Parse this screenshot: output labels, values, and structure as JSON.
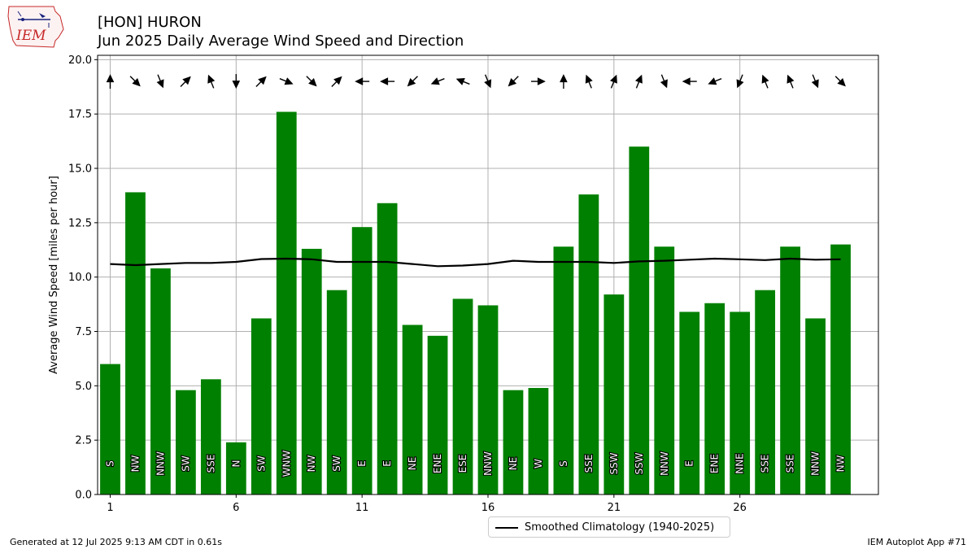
{
  "logo_text": "IEM",
  "title_line1": "[HON] HURON",
  "title_line2": "Jun 2025 Daily Average Wind Speed and Direction",
  "footer_left": "Generated at 12 Jul 2025 9:13 AM CDT in 0.61s",
  "footer_right": "IEM Autoplot App #71",
  "legend_label": "Smoothed Climatology (1940-2025)",
  "colors": {
    "bar": "#008000",
    "line": "#000000",
    "grid": "#b0b0b0",
    "logo_red": "#c62828",
    "logo_blue": "#1a237e"
  },
  "chart_data": {
    "type": "bar",
    "ylabel": "Average Wind Speed [miles per hour]",
    "xlabel": "",
    "ylim": [
      0,
      20.2
    ],
    "xlim": [
      0.5,
      31.5
    ],
    "yticks": [
      0.0,
      2.5,
      5.0,
      7.5,
      10.0,
      12.5,
      15.0,
      17.5,
      20.0
    ],
    "ytick_labels": [
      "0.0",
      "2.5",
      "5.0",
      "7.5",
      "10.0",
      "12.5",
      "15.0",
      "17.5",
      "20.0"
    ],
    "xticks": [
      1,
      6,
      11,
      16,
      21,
      26
    ],
    "xtick_labels": [
      "1",
      "6",
      "11",
      "16",
      "21",
      "26"
    ],
    "grid": true,
    "legend_position": "below",
    "days": [
      1,
      2,
      3,
      4,
      5,
      6,
      7,
      8,
      9,
      10,
      11,
      12,
      13,
      14,
      15,
      16,
      17,
      18,
      19,
      20,
      21,
      22,
      23,
      24,
      25,
      26,
      27,
      28,
      29,
      30
    ],
    "speed": [
      6.0,
      13.9,
      10.4,
      4.8,
      5.3,
      2.4,
      8.1,
      17.6,
      11.3,
      9.4,
      12.3,
      13.4,
      7.8,
      7.3,
      9.0,
      8.7,
      4.8,
      4.9,
      11.4,
      13.8,
      9.2,
      16.0,
      11.4,
      8.4,
      8.8,
      8.4,
      9.4,
      11.4,
      8.1,
      11.5
    ],
    "direction_labels": [
      "S",
      "NW",
      "NNW",
      "SW",
      "SSE",
      "N",
      "SW",
      "WNW",
      "NW",
      "SW",
      "E",
      "E",
      "NE",
      "ENE",
      "ESE",
      "NNW",
      "NE",
      "W",
      "S",
      "SSE",
      "SSW",
      "SSW",
      "NNW",
      "E",
      "ENE",
      "NNE",
      "SSE",
      "SSE",
      "NNW",
      "NW"
    ],
    "direction_degrees": [
      180,
      315,
      338,
      225,
      158,
      0,
      225,
      292,
      315,
      225,
      90,
      90,
      45,
      68,
      112,
      338,
      45,
      270,
      180,
      158,
      202,
      202,
      338,
      90,
      68,
      22,
      158,
      158,
      338,
      315
    ],
    "climatology": {
      "name": "Smoothed Climatology (1940-2025)",
      "values": [
        10.6,
        10.55,
        10.6,
        10.65,
        10.65,
        10.7,
        10.83,
        10.85,
        10.82,
        10.7,
        10.7,
        10.7,
        10.6,
        10.5,
        10.53,
        10.6,
        10.75,
        10.7,
        10.7,
        10.7,
        10.65,
        10.72,
        10.75,
        10.8,
        10.85,
        10.82,
        10.78,
        10.85,
        10.8,
        10.82
      ]
    }
  }
}
